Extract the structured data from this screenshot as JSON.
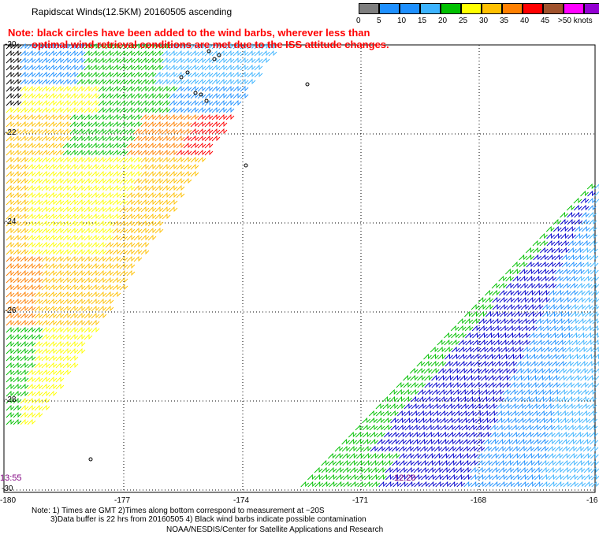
{
  "title": "Rapidscat Winds(12.5KM) 20160505 ascending",
  "note_line1": "Note: black circles have been added to the wind barbs, wherever less than",
  "note_line2": "optimal wind retrieval conditions are met due to the ISS attitude changes.",
  "legend": {
    "labels": [
      "0",
      "5",
      "10",
      "15",
      "20",
      "25",
      "30",
      "35",
      "40",
      "45",
      ">50 knots"
    ],
    "colors": [
      "#7f7f7f",
      "#1e90ff",
      "#1e90ff",
      "#3cb3ff",
      "#00c000",
      "#ffff00",
      "#ffc000",
      "#ff8000",
      "#ff0000",
      "#a0522d",
      "#ff00ff",
      "#9400d3"
    ],
    "units": "knots"
  },
  "map": {
    "lat_labels": [
      "-20",
      "-22",
      "-24",
      "-26",
      "-28",
      "-30"
    ],
    "lon_labels": [
      "-180",
      "-177",
      "-174",
      "-171",
      "-168",
      "-16"
    ],
    "time_left": "13:55",
    "time_right": "12:20",
    "grid_color": "#000000"
  },
  "footer": {
    "line1": "Note: 1) Times are GMT 2)Times along bottom correspond to measurement at ~20S",
    "line2": "3)Data buffer is 22 hrs from 20160505 4) Black wind barbs indicate possible contamination",
    "line3": "NOAA/NESDIS/Center for Satellite Applications and Research"
  }
}
